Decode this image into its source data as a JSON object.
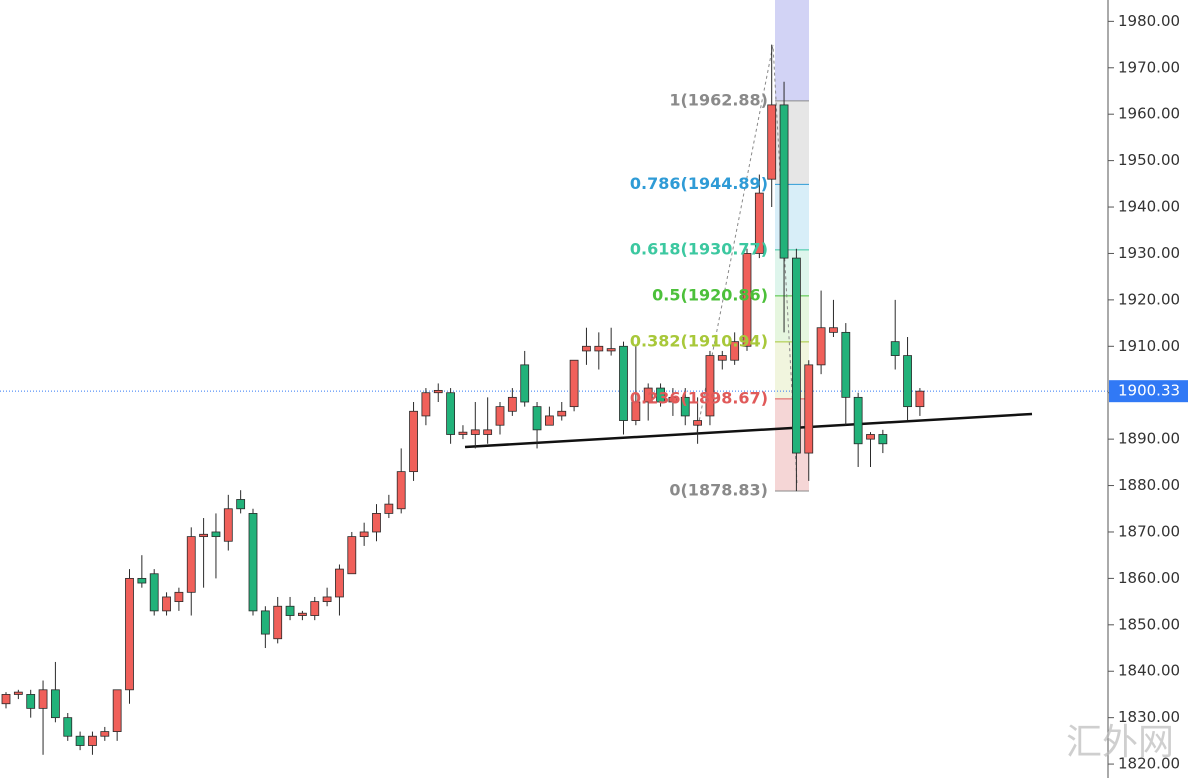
{
  "chart_data": {
    "type": "candlestick",
    "open": [
      1833,
      1835,
      1835,
      1832,
      1836,
      1830,
      1826,
      1824,
      1826,
      1827,
      1836,
      1860,
      1861,
      1853,
      1855,
      1857,
      1869,
      1870,
      1868,
      1877,
      1874,
      1853,
      1847,
      1854,
      1852,
      1852,
      1855,
      1856,
      1861,
      1869,
      1870,
      1874,
      1875,
      1883,
      1895,
      1900,
      1900,
      1891,
      1891,
      1891,
      1893,
      1896,
      1906,
      1897,
      1893,
      1895,
      1897,
      1909,
      1909,
      1909,
      1910,
      1894,
      1898,
      1901,
      1898,
      1899,
      1893,
      1895,
      1907,
      1907,
      1910,
      1930,
      1946,
      1962,
      1929,
      1887,
      1906,
      1913,
      1913,
      1899,
      1890,
      1891,
      1911,
      1908,
      1897
    ],
    "high": [
      1835.5,
      1836,
      1836,
      1838,
      1842,
      1831,
      1827,
      1827,
      1828,
      1836,
      1862,
      1865,
      1862,
      1857,
      1858,
      1871,
      1873,
      1874,
      1878,
      1879,
      1875,
      1854,
      1856,
      1856,
      1853,
      1856,
      1858,
      1863,
      1870,
      1872,
      1876,
      1878,
      1888,
      1898,
      1901,
      1902,
      1901,
      1893,
      1898,
      1899,
      1898,
      1901,
      1909,
      1898,
      1897,
      1898,
      1907,
      1914,
      1913,
      1914,
      1911,
      1910,
      1902,
      1902,
      1901,
      1901,
      1899,
      1909,
      1909,
      1913,
      1931,
      1947,
      1975,
      1967,
      1931,
      1907,
      1922,
      1920,
      1915,
      1900,
      1891.5,
      1892,
      1920,
      1912,
      1901
    ],
    "low": [
      1832,
      1834,
      1830,
      1822,
      1829,
      1825,
      1823,
      1822,
      1825,
      1825,
      1833,
      1858,
      1852,
      1852,
      1853,
      1852,
      1858,
      1860,
      1866,
      1874,
      1852,
      1845,
      1846,
      1851,
      1851,
      1851,
      1854,
      1852,
      1861,
      1867,
      1868,
      1873,
      1874,
      1881,
      1893,
      1898,
      1889,
      1890,
      1888,
      1889,
      1891,
      1895,
      1897,
      1888,
      1893,
      1894,
      1896,
      1906,
      1905,
      1908,
      1891,
      1893,
      1894,
      1897,
      1895,
      1893,
      1889,
      1893,
      1905,
      1906,
      1909,
      1929,
      1940,
      1913,
      1878.8,
      1881,
      1904,
      1912,
      1893,
      1884,
      1884,
      1887,
      1905,
      1894,
      1895
    ],
    "close": [
      1835,
      1835.5,
      1832,
      1836,
      1830,
      1826,
      1824,
      1826,
      1827,
      1836,
      1860,
      1859,
      1853,
      1856,
      1857,
      1869,
      1869.5,
      1869,
      1875,
      1875,
      1853,
      1848,
      1854,
      1852,
      1852.5,
      1855,
      1856,
      1862,
      1869,
      1870,
      1874,
      1876,
      1883,
      1896,
      1900,
      1900.5,
      1891,
      1891.5,
      1892,
      1892,
      1897,
      1899,
      1898,
      1892,
      1895,
      1896,
      1907,
      1910,
      1910,
      1909.5,
      1894,
      1898,
      1901,
      1898,
      1899,
      1895,
      1894,
      1908,
      1908,
      1911,
      1930,
      1943,
      1962,
      1929,
      1887,
      1906,
      1914,
      1914,
      1899,
      1889,
      1891,
      1889,
      1908,
      1897,
      1900.33
    ],
    "up_color": "#f0605a",
    "down_color": "#22b27a",
    "ylim": [
      1817,
      1984.6
    ],
    "yticks": [
      {
        "value": 1820,
        "label": "1820.00"
      },
      {
        "value": 1830,
        "label": "1830.00"
      },
      {
        "value": 1840,
        "label": "1840.00"
      },
      {
        "value": 1850,
        "label": "1850.00"
      },
      {
        "value": 1860,
        "label": "1860.00"
      },
      {
        "value": 1870,
        "label": "1870.00"
      },
      {
        "value": 1880,
        "label": "1880.00"
      },
      {
        "value": 1890,
        "label": "1890.00"
      },
      {
        "value": 1900,
        "label": "1900.00"
      },
      {
        "value": 1910,
        "label": "1910.00"
      },
      {
        "value": 1920,
        "label": "1920.00"
      },
      {
        "value": 1930,
        "label": "1930.00"
      },
      {
        "value": 1940,
        "label": "1940.00"
      },
      {
        "value": 1950,
        "label": "1950.00"
      },
      {
        "value": 1960,
        "label": "1960.00"
      },
      {
        "value": 1970,
        "label": "1970.00"
      },
      {
        "value": 1980,
        "label": "1980.00"
      }
    ],
    "last_price": {
      "value": 1900.33,
      "label": "1900.33",
      "color": "#3179f5"
    },
    "fib_top_band": "#d2d3f5",
    "fib_levels": [
      {
        "value": 1962.88,
        "label": "1(1962.88)",
        "color": "#8a8a8a",
        "band": "#e6e6e6"
      },
      {
        "value": 1944.89,
        "label": "0.786(1944.89)",
        "color": "#2f9bd6",
        "band": "#d8eef8"
      },
      {
        "value": 1930.77,
        "label": "0.618(1930.77)",
        "color": "#3cc8a0",
        "band": "#def5ec"
      },
      {
        "value": 1920.86,
        "label": "0.5(1920.86)",
        "color": "#4cc03a",
        "band": "#e6f6df"
      },
      {
        "value": 1910.94,
        "label": "0.382(1910.94)",
        "color": "#a8c83a",
        "band": "#f1f5de"
      },
      {
        "value": 1898.67,
        "label": "0.236(1898.67)",
        "color": "#e05a5a",
        "band": "#f5d6d6"
      },
      {
        "value": 1878.83,
        "label": "0(1878.83)",
        "color": "#8a8a8a"
      }
    ],
    "watermark": "汇外网"
  }
}
